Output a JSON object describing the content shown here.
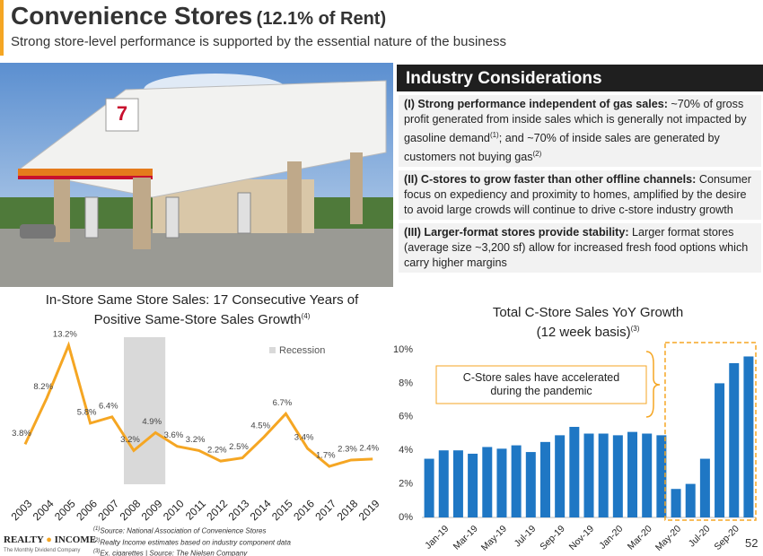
{
  "header": {
    "title": "Convenience Stores",
    "title_note": "(12.1% of Rent)",
    "subtitle": "Strong store-level performance is supported by the essential nature of the business"
  },
  "considerations": {
    "title": "Industry Considerations",
    "items": [
      {
        "lead": "(I) Strong performance independent of gas sales:",
        "segments": [
          {
            "text": " ~70% of gross profit generated from inside sales which is generally not impacted by gasoline demand"
          },
          {
            "sup": "(1)"
          },
          {
            "text": "; and ~70% of inside sales are generated by customers not buying gas"
          },
          {
            "sup": "(2)"
          }
        ]
      },
      {
        "lead": "(II) C-stores to grow faster than other offline channels:",
        "segments": [
          {
            "text": " Consumer focus on expediency and proximity to homes, amplified by the desire to avoid large crowds will continue to drive c-store industry growth"
          }
        ]
      },
      {
        "lead": "(III) Larger-format stores provide stability:",
        "segments": [
          {
            "text": " Larger format stores (average size ~3,200 sf) allow for increased fresh food options which carry higher margins"
          }
        ]
      }
    ]
  },
  "chart_data": [
    {
      "type": "line",
      "title": "In-Store Same Store Sales: 17 Consecutive Years of Positive Same-Store Sales Growth",
      "title_sup": "(4)",
      "color": "#f5a623",
      "categories": [
        "2003",
        "2004",
        "2005",
        "2006",
        "2007",
        "2008",
        "2009",
        "2010",
        "2011",
        "2012",
        "2013",
        "2014",
        "2015",
        "2016",
        "2017",
        "2018",
        "2019"
      ],
      "values": [
        3.8,
        8.2,
        13.2,
        5.8,
        6.4,
        3.2,
        4.9,
        3.6,
        3.2,
        2.2,
        2.5,
        4.5,
        6.7,
        3.4,
        1.7,
        2.3,
        2.4
      ],
      "value_labels": [
        "3.8%",
        "8.2%",
        "13.2%",
        "5.8%",
        "6.4%",
        "3.2%",
        "4.9%",
        "3.6%",
        "3.2%",
        "2.2%",
        "2.5%",
        "4.5%",
        "6.7%",
        "3.4%",
        "1.7%",
        "2.3%",
        "2.4%"
      ],
      "shaded": {
        "name": "Recession",
        "from": "2008",
        "to": "2009",
        "color": "#d9d9d9"
      }
    },
    {
      "type": "bar",
      "title": "Total C-Store Sales YoY Growth",
      "subtitle": "(12 week basis)",
      "title_sup": "(3)",
      "color": "#1f77c4",
      "categories": [
        null,
        "Jan-19",
        null,
        "Mar-19",
        null,
        "May-19",
        null,
        "Jul-19",
        null,
        "Sep-19",
        null,
        "Nov-19",
        null,
        "Jan-20",
        null,
        "Mar-20",
        null,
        "May-20",
        null,
        "Jul-20",
        null,
        "Sep-20",
        null
      ],
      "values": [
        3.5,
        4.0,
        4.0,
        3.8,
        4.2,
        4.1,
        4.3,
        3.9,
        4.5,
        4.9,
        5.4,
        5.0,
        5.0,
        4.9,
        5.1,
        5.0,
        4.9,
        1.7,
        2.0,
        3.5,
        8.0,
        9.2,
        9.6
      ],
      "ylim": [
        0,
        10
      ],
      "yticks": [
        {
          "value": 0,
          "label": "0%"
        },
        {
          "value": 2,
          "label": "2%"
        },
        {
          "value": 4,
          "label": "4%"
        },
        {
          "value": 6,
          "label": "6%"
        },
        {
          "value": 8,
          "label": "8%"
        },
        {
          "value": 10,
          "label": "10%"
        }
      ],
      "annotation": "C-Store sales have accelerated during the pandemic"
    }
  ],
  "footer": {
    "notes": [
      {
        "sup": "(1)",
        "text": "Source: National Association of Convenience Stores"
      },
      {
        "sup": "(2)",
        "text": "Realty Income estimates based on industry component data"
      },
      {
        "sup": "(3)",
        "text": "Ex. cigarettes | Source: The Nielsen Company"
      }
    ],
    "logo_left": "REALTY",
    "logo_right": "INCOME",
    "tagline": "The Monthly Dividend Company",
    "page": "52"
  }
}
